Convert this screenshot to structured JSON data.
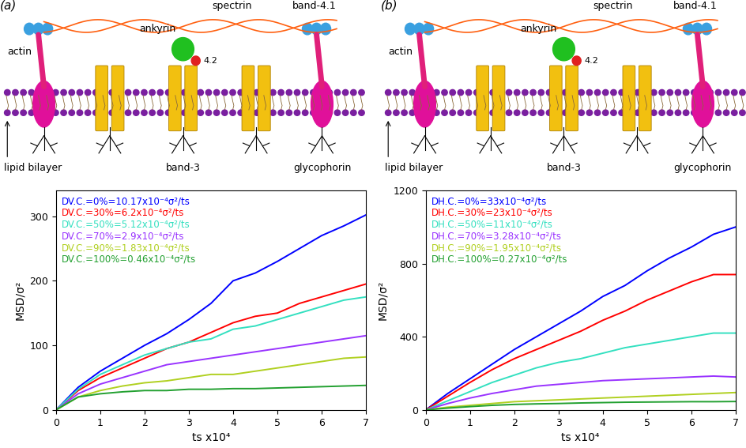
{
  "diagrams": [
    {
      "panel_label": "(a)",
      "texts": {
        "spectrin": "spectrin",
        "ankyrin": "ankyrin",
        "band41": "band-4.1",
        "actin": "actin",
        "p42": "4.2",
        "bilayer": "lipid bilayer",
        "band3": "band-3",
        "glycophorin": "glycophorin"
      }
    },
    {
      "panel_label": "(b)",
      "texts": {
        "spectrin": "spectrin",
        "ankyrin": "ankyrin",
        "band41": "band-4.1",
        "actin": "actin",
        "p42": "4.2",
        "bilayer": "lipid bilayer",
        "band3": "band-3",
        "glycophorin": "glycophorin"
      }
    }
  ],
  "chart_data": [
    {
      "type": "line",
      "x_label": "ts x10⁴",
      "y_label": "MSD/σ²",
      "x": [
        0,
        0.5,
        1,
        1.5,
        2,
        2.5,
        3,
        3.5,
        4,
        4.5,
        5,
        5.5,
        6,
        6.5,
        7
      ],
      "xlim": [
        0,
        7
      ],
      "xticks": [
        0,
        1,
        2,
        3,
        4,
        5,
        6,
        7
      ],
      "ylim": [
        0,
        340
      ],
      "yticks": [
        0,
        100,
        200,
        300
      ],
      "legend": "upper left",
      "series": [
        {
          "name": "DV.C.=0%=10.17x10⁻⁴σ²/ts",
          "color": "#0000ff",
          "values": [
            0,
            35,
            60,
            80,
            100,
            118,
            140,
            165,
            200,
            212,
            230,
            250,
            270,
            285,
            302
          ]
        },
        {
          "name": "DV.C.=30%=6.2x10⁻⁴σ²/ts",
          "color": "#ff0000",
          "values": [
            0,
            30,
            50,
            65,
            80,
            95,
            105,
            120,
            135,
            145,
            150,
            165,
            175,
            185,
            195
          ]
        },
        {
          "name": "DV.C.=50%=5.12x10⁻⁴σ²/ts",
          "color": "#33e0c0",
          "values": [
            0,
            32,
            55,
            70,
            85,
            95,
            105,
            110,
            125,
            130,
            140,
            150,
            160,
            170,
            175
          ]
        },
        {
          "name": "DV.C.=70%=2.9x10⁻⁴σ²/ts",
          "color": "#9933ff",
          "values": [
            0,
            25,
            40,
            50,
            60,
            70,
            75,
            80,
            85,
            90,
            95,
            100,
            105,
            110,
            115
          ]
        },
        {
          "name": "DV.C.=90%=1.83x10⁻⁴σ²/ts",
          "color": "#b0d020",
          "values": [
            0,
            20,
            30,
            37,
            42,
            45,
            50,
            55,
            55,
            60,
            65,
            70,
            75,
            80,
            82
          ]
        },
        {
          "name": "DV.C.=100%=0.46x10⁻⁴σ²/ts",
          "color": "#22a030",
          "values": [
            0,
            20,
            25,
            28,
            30,
            30,
            32,
            32,
            33,
            33,
            34,
            35,
            36,
            37,
            38
          ]
        }
      ]
    },
    {
      "type": "line",
      "x_label": "ts x10⁴",
      "y_label": "MSD/σ²",
      "x": [
        0,
        0.5,
        1,
        1.5,
        2,
        2.5,
        3,
        3.5,
        4,
        4.5,
        5,
        5.5,
        6,
        6.5,
        7
      ],
      "xlim": [
        0,
        7
      ],
      "xticks": [
        0,
        1,
        2,
        3,
        4,
        5,
        6,
        7
      ],
      "ylim": [
        0,
        1200
      ],
      "yticks": [
        0,
        400,
        800,
        1200
      ],
      "legend": "upper left",
      "series": [
        {
          "name": "DH.C.=0%=33x10⁻⁴σ²/ts",
          "color": "#0000ff",
          "values": [
            0,
            90,
            170,
            250,
            330,
            400,
            470,
            540,
            620,
            680,
            760,
            830,
            890,
            960,
            1000
          ]
        },
        {
          "name": "DH.C.=30%=23x10⁻⁴σ²/ts",
          "color": "#ff0000",
          "values": [
            0,
            75,
            150,
            220,
            280,
            330,
            380,
            430,
            490,
            540,
            600,
            650,
            700,
            740,
            740
          ]
        },
        {
          "name": "DH.C.=50%=11x10⁻⁴σ²/ts",
          "color": "#33e0c0",
          "values": [
            0,
            50,
            100,
            150,
            190,
            230,
            260,
            280,
            310,
            340,
            360,
            380,
            400,
            420,
            420
          ]
        },
        {
          "name": "DH.C.=70%=3.28x10⁻⁴σ²/ts",
          "color": "#9933ff",
          "values": [
            0,
            35,
            65,
            90,
            110,
            130,
            140,
            150,
            160,
            165,
            170,
            175,
            180,
            185,
            180
          ]
        },
        {
          "name": "DH.C.=90%=1.95x10⁻⁴σ²/ts",
          "color": "#b0d020",
          "values": [
            0,
            15,
            25,
            35,
            45,
            50,
            55,
            60,
            65,
            70,
            75,
            80,
            85,
            90,
            95
          ]
        },
        {
          "name": "DH.C.=100%=0.27x10⁻⁴σ²/ts",
          "color": "#22a030",
          "values": [
            0,
            10,
            18,
            25,
            30,
            33,
            35,
            38,
            40,
            42,
            43,
            44,
            45,
            45,
            46
          ]
        }
      ]
    }
  ]
}
